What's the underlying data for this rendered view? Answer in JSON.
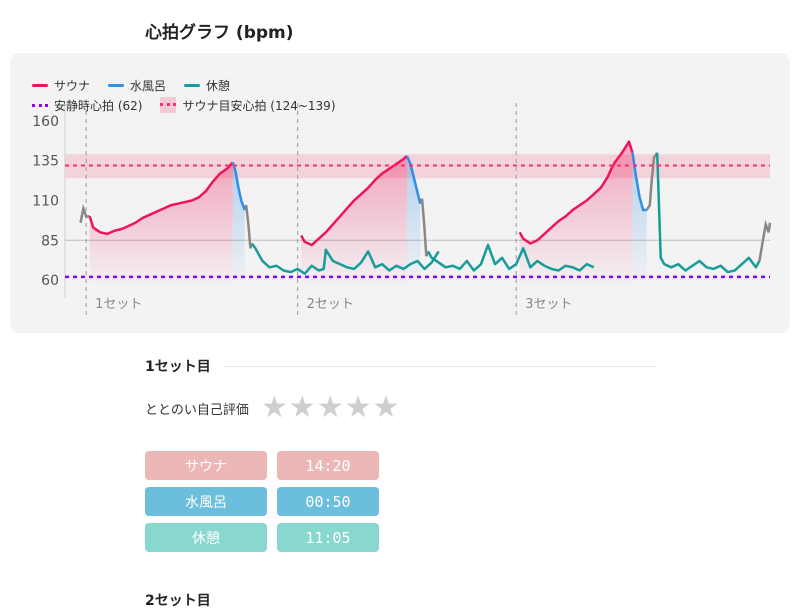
{
  "title": "心拍グラフ (bpm)",
  "legend": {
    "sauna": "サウナ",
    "mizuburo": "水風呂",
    "rest": "休憩",
    "resting_hr": "安静時心拍 (62)",
    "target_hr": "サウナ目安心拍 (124~139)"
  },
  "colors": {
    "sauna": "#f0145a",
    "mizuburo": "#2f8ee6",
    "rest": "#169d9a",
    "gap": "#888888",
    "resting": "#8b00ff",
    "target": "#ff2d6f",
    "sauna_pill": "#ecb7b7",
    "mizuburo_pill": "#6cbfdc",
    "rest_pill": "#88d8cf"
  },
  "chart_data": {
    "type": "line",
    "yticks": [
      60,
      85,
      110,
      135,
      160
    ],
    "ylim": [
      55,
      165
    ],
    "xlim": [
      0,
      100
    ],
    "resting_hr": 62,
    "target_band": [
      124,
      139
    ],
    "target_line": 132,
    "sets": [
      {
        "label": "1セット",
        "x": 3
      },
      {
        "label": "2セット",
        "x": 33
      },
      {
        "label": "3セット",
        "x": 64
      }
    ],
    "series": [
      {
        "name": "サウナ",
        "segments": [
          {
            "x": [
              3.5,
              4,
              5,
              6,
              7,
              8,
              9,
              10,
              11,
              12,
              13,
              14,
              15,
              16,
              17,
              18,
              19,
              20,
              21,
              22,
              23,
              23.8
            ],
            "y": [
              100,
              93,
              90,
              89,
              91,
              92,
              94,
              96,
              99,
              101,
              103,
              105,
              107,
              108,
              109,
              110,
              112,
              116,
              122,
              127,
              130,
              134
            ]
          },
          {
            "x": [
              33.5,
              34,
              35,
              36,
              37,
              38,
              39,
              40,
              41,
              42,
              43,
              44,
              45,
              46,
              47,
              48,
              48.5
            ],
            "y": [
              88,
              84,
              82,
              86,
              90,
              95,
              100,
              105,
              110,
              114,
              118,
              123,
              127,
              130,
              133,
              136,
              138
            ]
          },
          {
            "x": [
              64.5,
              65,
              66,
              67,
              68,
              69,
              70,
              71,
              72,
              73,
              74,
              75,
              76,
              77,
              77.5,
              78,
              79,
              80,
              80.5
            ],
            "y": [
              90,
              86,
              83,
              85,
              89,
              93,
              97,
              100,
              104,
              107,
              110,
              114,
              118,
              125,
              130,
              134,
              140,
              147,
              140
            ]
          }
        ]
      },
      {
        "name": "水風呂",
        "segments": [
          {
            "x": [
              23.8,
              24.2,
              24.6,
              25,
              25.5
            ],
            "y": [
              134,
              128,
              118,
              110,
              104
            ]
          },
          {
            "x": [
              48.5,
              49,
              49.5,
              50,
              50.4
            ],
            "y": [
              138,
              133,
              124,
              115,
              108
            ]
          },
          {
            "x": [
              80.5,
              81,
              81.5,
              82,
              82.5
            ],
            "y": [
              140,
              125,
              112,
              104,
              104
            ]
          }
        ]
      },
      {
        "name": "休憩",
        "segments": [
          {
            "x": [
              26.5,
              27,
              28,
              29,
              30,
              31,
              32,
              33,
              34,
              35,
              36,
              36.7,
              37,
              38,
              39,
              40,
              41,
              42,
              43,
              44,
              45,
              46,
              47,
              48,
              49,
              50,
              51,
              52,
              53
            ],
            "y": [
              83,
              80,
              72,
              68,
              69,
              66,
              65,
              67,
              64,
              69,
              66,
              67,
              79,
              72,
              70,
              68,
              67,
              71,
              78,
              68,
              70,
              66,
              69,
              67,
              70,
              72,
              67,
              71,
              78
            ]
          },
          {
            "x": [
              51.5,
              52,
              53,
              54,
              55,
              56,
              57,
              58,
              59,
              60,
              61,
              62,
              63,
              64,
              65,
              66,
              67,
              68,
              69,
              70,
              71,
              72,
              73,
              74,
              75
            ],
            "y": [
              78,
              74,
              71,
              68,
              69,
              67,
              72,
              66,
              70,
              82,
              70,
              74,
              67,
              70,
              80,
              68,
              72,
              69,
              67,
              66,
              69,
              68,
              66,
              70,
              68
            ]
          },
          {
            "x": [
              84,
              84.5,
              85,
              86,
              87,
              88,
              89,
              90,
              91,
              92,
              93,
              94,
              95,
              96,
              97,
              98,
              98.5
            ],
            "y": [
              140,
              74,
              70,
              68,
              70,
              66,
              69,
              72,
              68,
              67,
              69,
              65,
              66,
              70,
              74,
              68,
              72
            ]
          }
        ]
      }
    ]
  },
  "set1": {
    "title": "1セット目",
    "rating_label": "ととのい自己評価",
    "rows": [
      {
        "label": "サウナ",
        "value": "14:20"
      },
      {
        "label": "水風呂",
        "value": "00:50"
      },
      {
        "label": "休憩",
        "value": "11:05"
      }
    ]
  },
  "set2": {
    "title": "2セット目"
  }
}
